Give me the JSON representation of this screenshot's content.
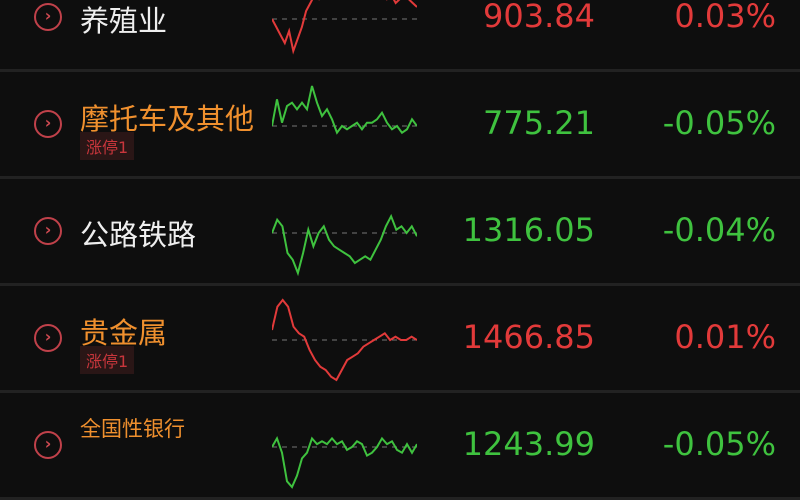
{
  "colors": {
    "up": "#e23a3a",
    "down": "#3fc23f",
    "name_orange": "#f0902e",
    "name_white": "#eeeeee"
  },
  "rows": [
    {
      "name": "养殖业",
      "name_color": "white",
      "price": "903.84",
      "change": "0.03%",
      "trend": "up",
      "tag": null,
      "sparkline": [
        0,
        -2,
        -4,
        -6,
        -3,
        -8,
        -5,
        -2,
        2,
        4,
        6,
        5,
        7,
        9,
        8,
        6,
        9,
        7,
        8,
        10,
        8,
        9,
        7,
        8,
        6,
        7,
        8,
        5,
        6,
        4,
        5,
        6,
        5,
        4,
        3
      ]
    },
    {
      "name": "摩托车及其他",
      "name_color": "orange",
      "price": "775.21",
      "change": "-0.05%",
      "trend": "down",
      "tag": "涨停1",
      "sparkline": [
        0,
        8,
        1,
        6,
        7,
        5,
        7,
        5,
        12,
        7,
        3,
        5,
        2,
        -2,
        0,
        -1,
        0,
        1,
        -1,
        1,
        1,
        2,
        4,
        1,
        -1,
        0,
        -2,
        -1,
        2,
        0
      ]
    },
    {
      "name": "公路铁路",
      "name_color": "white",
      "price": "1316.05",
      "change": "-0.04%",
      "trend": "down",
      "tag": null,
      "sparkline": [
        0,
        4,
        2,
        -6,
        -8,
        -12,
        -6,
        1,
        -4,
        0,
        2,
        -2,
        -4,
        -5,
        -6,
        -7,
        -9,
        -8,
        -7,
        -8,
        -5,
        -2,
        2,
        5,
        1,
        2,
        0,
        2,
        -1
      ]
    },
    {
      "name": "贵金属",
      "name_color": "orange",
      "price": "1466.85",
      "change": "0.01%",
      "trend": "up",
      "tag": "涨停1",
      "sparkline": [
        3,
        10,
        12,
        10,
        4,
        2,
        1,
        -3,
        -6,
        -8,
        -9,
        -11,
        -12,
        -9,
        -6,
        -5,
        -4,
        -2,
        -1,
        0,
        1,
        2,
        0,
        1,
        0,
        0,
        1,
        0
      ]
    },
    {
      "name": "全国性银行",
      "name_color": "orange",
      "price": "1243.99",
      "change": "-0.05%",
      "trend": "down",
      "tag": null,
      "sparkline": [
        0,
        3,
        -2,
        -12,
        -14,
        -10,
        -4,
        -2,
        3,
        1,
        2,
        1,
        3,
        1,
        2,
        -1,
        0,
        2,
        1,
        -3,
        -2,
        0,
        3,
        1,
        2,
        -1,
        -2,
        1,
        -2,
        1
      ]
    }
  ]
}
